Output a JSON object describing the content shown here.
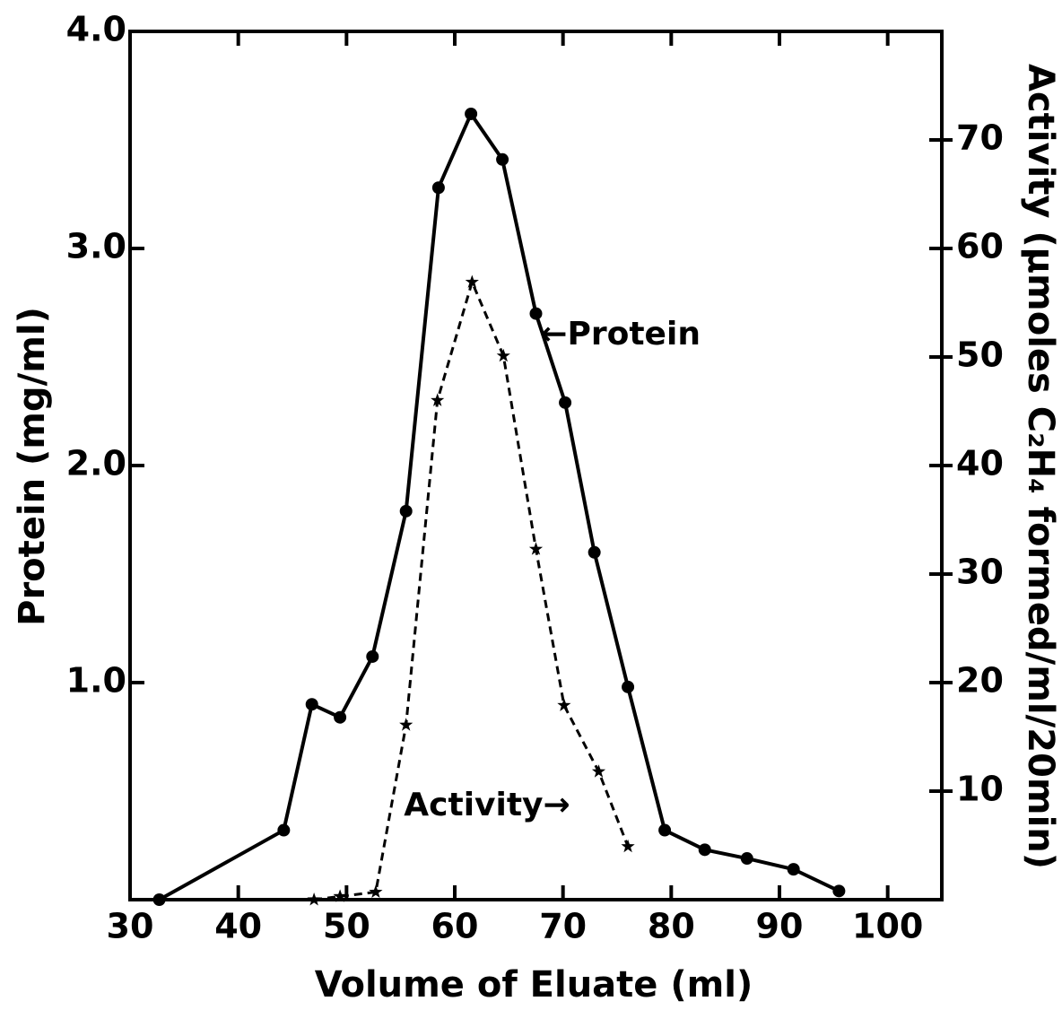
{
  "chart_data": {
    "type": "line",
    "xlabel": "Volume of Eluate (ml)",
    "ylabel": "Protein (mg/ml)",
    "y2label": "Activity (µmoles C₂H₄ formed/ml/20min)",
    "xlim": [
      30,
      105
    ],
    "xticks": [
      30,
      40,
      50,
      60,
      70,
      80,
      90,
      100
    ],
    "ylim": [
      0,
      4
    ],
    "yticks": [
      {
        "value": 1,
        "label": "1.0"
      },
      {
        "value": 2,
        "label": "2.0"
      },
      {
        "value": 3,
        "label": "3.0"
      },
      {
        "value": 4,
        "label": "4.0"
      }
    ],
    "y2lim": [
      0,
      80
    ],
    "y2ticks": [
      10,
      20,
      30,
      40,
      50,
      60,
      70
    ],
    "series": [
      {
        "color": "#000000",
        "marker": "circle",
        "dashed": false,
        "x": [
          32.7,
          44.2,
          46.8,
          49.4,
          52.4,
          55.5,
          58.5,
          61.5,
          64.4,
          67.5,
          70.2,
          72.9,
          76.0,
          79.4,
          83.1,
          87.0,
          91.3,
          95.5
        ],
        "values": [
          0.0,
          0.32,
          0.9,
          0.84,
          1.12,
          1.79,
          3.28,
          3.62,
          3.41,
          2.7,
          2.29,
          1.6,
          0.98,
          0.32,
          0.23,
          0.19,
          0.14,
          0.04
        ]
      },
      {
        "color": "#000000",
        "marker": "star",
        "dashed": true,
        "axis": "y2",
        "x": [
          47.0,
          49.4,
          52.7,
          55.5,
          58.4,
          61.6,
          64.5,
          67.5,
          70.1,
          73.3,
          76.0
        ],
        "values": [
          0.0,
          0.3,
          0.7,
          16.1,
          46.0,
          56.9,
          50.1,
          32.3,
          17.9,
          11.8,
          4.9
        ]
      }
    ],
    "annotations": [
      {
        "text": "←Protein",
        "x": 67.9,
        "y": 2.6
      },
      {
        "text": "Activity→",
        "x": 55.3,
        "y": 0.43
      }
    ]
  }
}
